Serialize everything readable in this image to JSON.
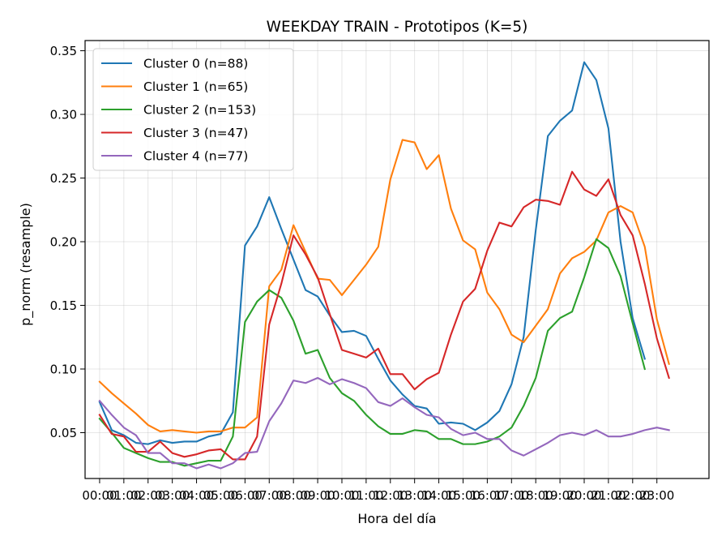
{
  "chart_data": {
    "type": "line",
    "title": "WEEKDAY TRAIN - Prototipos (K=5)",
    "xlabel": "Hora del día",
    "ylabel": "p_norm (resample)",
    "ylim": [
      0.014,
      0.358
    ],
    "xlim": [
      -1.2,
      50.3
    ],
    "yticks": [
      0.05,
      0.1,
      0.15,
      0.2,
      0.25,
      0.3,
      0.35
    ],
    "ytick_labels": [
      "0.05",
      "0.10",
      "0.15",
      "0.20",
      "0.25",
      "0.30",
      "0.35"
    ],
    "xticks": [
      0,
      2,
      4,
      6,
      8,
      10,
      12,
      14,
      16,
      18,
      20,
      22,
      24,
      26,
      28,
      30,
      32,
      34,
      36,
      38,
      40,
      42,
      44,
      46
    ],
    "xtick_labels": [
      "00:00",
      "01:00",
      "02:00",
      "03:00",
      "04:00",
      "05:00",
      "06:00",
      "07:00",
      "08:00",
      "09:00",
      "10:00",
      "11:00",
      "12:00",
      "13:00",
      "14:00",
      "15:00",
      "16:00",
      "17:00",
      "18:00",
      "19:00",
      "20:00",
      "21:00",
      "22:00",
      "23:00"
    ],
    "grid": true,
    "legend_position": "upper-left",
    "series": [
      {
        "name": "Cluster 0 (n=88)",
        "color": "#1f77b4",
        "values": [
          0.074,
          0.052,
          0.048,
          0.042,
          0.041,
          0.044,
          0.042,
          0.043,
          0.043,
          0.047,
          0.049,
          0.066,
          0.197,
          0.212,
          0.235,
          0.21,
          0.186,
          0.162,
          0.157,
          0.142,
          0.129,
          0.13,
          0.126,
          0.108,
          0.091,
          0.08,
          0.071,
          0.069,
          0.057,
          0.058,
          0.057,
          0.052,
          0.058,
          0.067,
          0.088,
          0.125,
          0.209,
          0.283,
          0.295,
          0.303,
          0.341,
          0.327,
          0.289,
          0.2,
          0.14,
          0.108
        ]
      },
      {
        "name": "Cluster 1 (n=65)",
        "color": "#ff7f0e",
        "values": [
          0.09,
          0.081,
          0.073,
          0.065,
          0.056,
          0.051,
          0.052,
          0.051,
          0.05,
          0.051,
          0.051,
          0.054,
          0.054,
          0.062,
          0.165,
          0.178,
          0.213,
          0.192,
          0.171,
          0.17,
          0.158,
          0.17,
          0.182,
          0.196,
          0.249,
          0.28,
          0.278,
          0.257,
          0.268,
          0.226,
          0.201,
          0.194,
          0.16,
          0.147,
          0.127,
          0.121,
          0.134,
          0.147,
          0.175,
          0.187,
          0.192,
          0.201,
          0.223,
          0.228,
          0.223,
          0.196,
          0.139,
          0.104
        ]
      },
      {
        "name": "Cluster 2 (n=153)",
        "color": "#2ca02c",
        "values": [
          0.061,
          0.05,
          0.038,
          0.034,
          0.03,
          0.027,
          0.027,
          0.024,
          0.026,
          0.028,
          0.028,
          0.047,
          0.137,
          0.153,
          0.162,
          0.156,
          0.138,
          0.112,
          0.115,
          0.093,
          0.081,
          0.075,
          0.064,
          0.055,
          0.049,
          0.049,
          0.052,
          0.051,
          0.045,
          0.045,
          0.041,
          0.041,
          0.043,
          0.047,
          0.054,
          0.071,
          0.093,
          0.13,
          0.14,
          0.145,
          0.172,
          0.202,
          0.195,
          0.173,
          0.136,
          0.1
        ]
      },
      {
        "name": "Cluster 3 (n=47)",
        "color": "#d62728",
        "values": [
          0.064,
          0.049,
          0.047,
          0.035,
          0.035,
          0.043,
          0.034,
          0.031,
          0.033,
          0.036,
          0.037,
          0.029,
          0.029,
          0.047,
          0.135,
          0.167,
          0.205,
          0.19,
          0.172,
          0.143,
          0.115,
          0.112,
          0.109,
          0.116,
          0.096,
          0.096,
          0.084,
          0.092,
          0.097,
          0.127,
          0.153,
          0.163,
          0.193,
          0.215,
          0.212,
          0.227,
          0.233,
          0.232,
          0.229,
          0.255,
          0.241,
          0.236,
          0.249,
          0.221,
          0.205,
          0.167,
          0.124,
          0.093
        ]
      },
      {
        "name": "Cluster 4 (n=77)",
        "color": "#9467bd",
        "values": [
          0.075,
          0.064,
          0.054,
          0.048,
          0.034,
          0.034,
          0.026,
          0.026,
          0.022,
          0.025,
          0.022,
          0.026,
          0.034,
          0.035,
          0.059,
          0.073,
          0.091,
          0.089,
          0.093,
          0.088,
          0.092,
          0.089,
          0.085,
          0.074,
          0.071,
          0.077,
          0.07,
          0.064,
          0.062,
          0.053,
          0.048,
          0.05,
          0.045,
          0.045,
          0.036,
          0.032,
          0.037,
          0.042,
          0.048,
          0.05,
          0.048,
          0.052,
          0.047,
          0.047,
          0.049,
          0.052,
          0.054,
          0.052
        ]
      }
    ]
  }
}
